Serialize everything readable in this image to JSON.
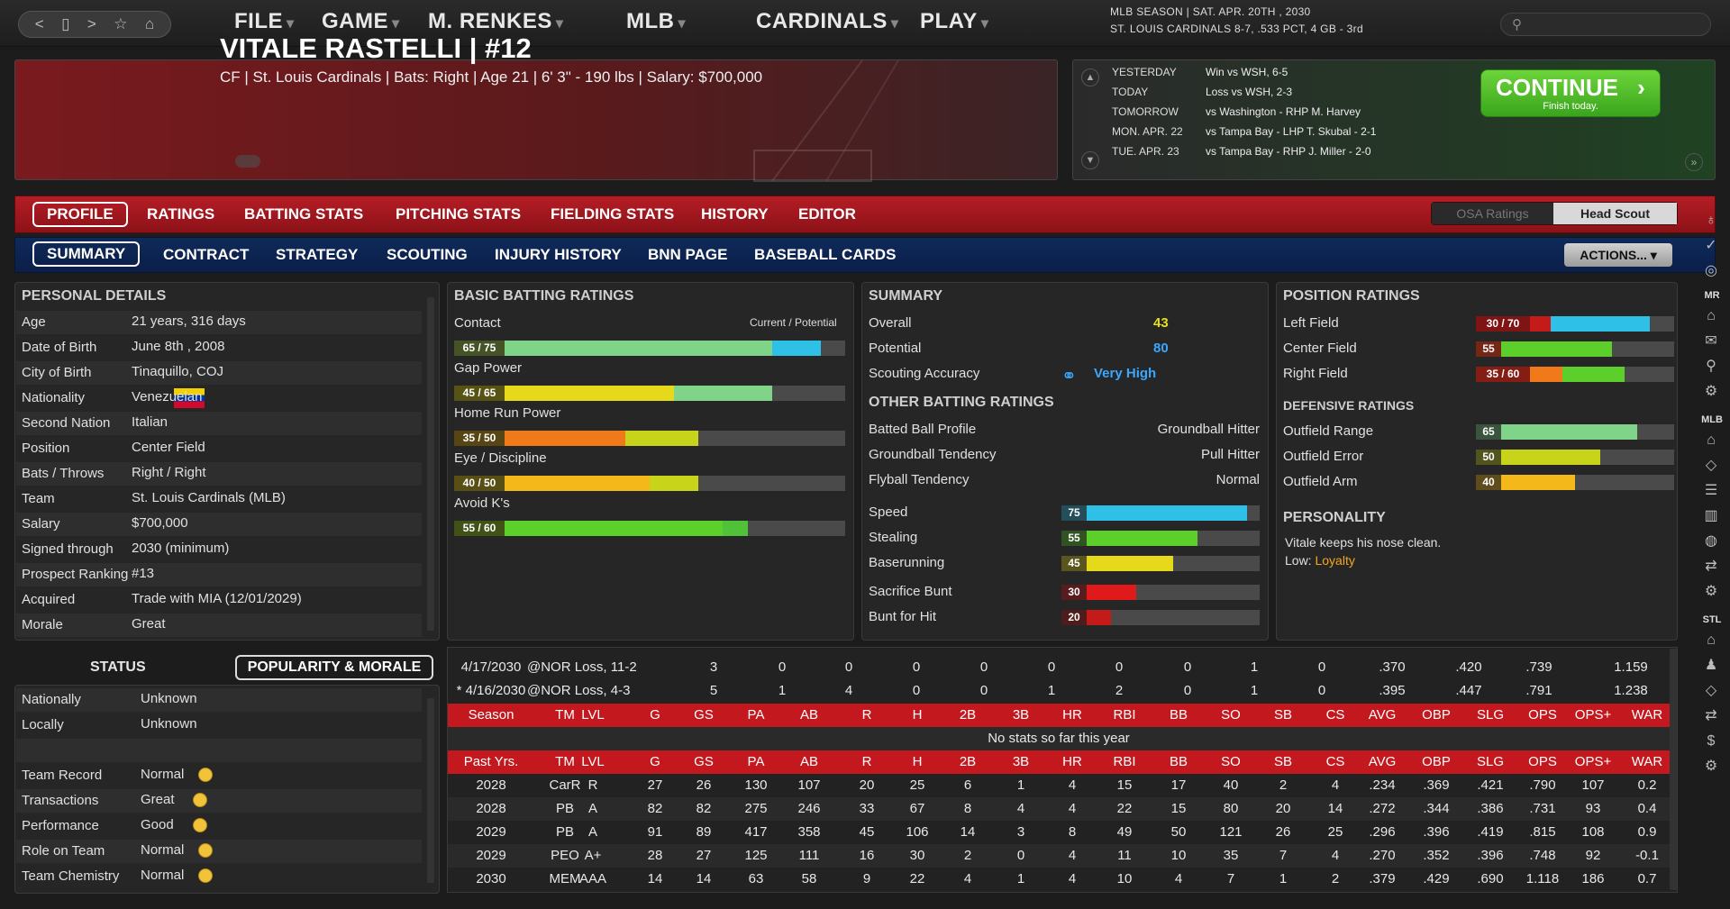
{
  "topbar": {
    "nav_icons": [
      "<",
      "▯",
      ">",
      "☆",
      "⌂"
    ],
    "menus": [
      "FILE",
      "GAME",
      "M. RENKES",
      "MLB",
      "CARDINALS",
      "PLAY"
    ],
    "season_line1": "MLB SEASON  |  SAT. APR. 20TH , 2030",
    "season_line2": "ST. LOUIS CARDINALS  8-7, .533 PCT, 4 GB - 3rd"
  },
  "player": {
    "name": "VITALE RASTELLI  |  #12",
    "info": "CF | St. Louis Cardinals  |  Bats: Right  |  Age 21  |  6' 3\" - 190 lbs  |  Salary: $700,000"
  },
  "schedule": {
    "rows": [
      {
        "day": "YESTERDAY",
        "result": "Win vs WSH, 6-5"
      },
      {
        "day": "TODAY",
        "result": "Loss vs WSH, 2-3"
      },
      {
        "day": "TOMORROW",
        "result": "vs Washington - RHP M. Harvey"
      },
      {
        "day": "MON. APR. 22",
        "result": "vs Tampa Bay - LHP T. Skubal - 2-1"
      },
      {
        "day": "TUE. APR. 23",
        "result": "vs Tampa Bay - RHP J. Miller - 2-0"
      }
    ],
    "continue_label": "CONTINUE",
    "continue_sub": "Finish today."
  },
  "tabs_main": [
    "PROFILE",
    "RATINGS",
    "BATTING STATS",
    "PITCHING STATS",
    "FIELDING STATS",
    "HISTORY",
    "EDITOR"
  ],
  "tabs_sub": [
    "SUMMARY",
    "CONTRACT",
    "STRATEGY",
    "SCOUTING",
    "INJURY HISTORY",
    "BNN PAGE",
    "BASEBALL CARDS"
  ],
  "toggle": {
    "off": "OSA Ratings",
    "on": "Head Scout"
  },
  "actions_label": "ACTIONS...",
  "personal": {
    "title": "PERSONAL DETAILS",
    "rows": [
      {
        "label": "Age",
        "value": "21 years, 316 days"
      },
      {
        "label": "Date of Birth",
        "value": "June 8th , 2008"
      },
      {
        "label": "City of Birth",
        "value": "Tinaquillo, COJ"
      },
      {
        "label": "Nationality",
        "value": "Venezuelan"
      },
      {
        "label": "Second Nation",
        "value": "Italian"
      },
      {
        "label": "Position",
        "value": "Center Field"
      },
      {
        "label": "Bats / Throws",
        "value": "Right / Right"
      },
      {
        "label": "Team",
        "value": "St. Louis Cardinals (MLB)"
      },
      {
        "label": "Salary",
        "value": "$700,000"
      },
      {
        "label": "Signed through",
        "value": "2030 (minimum)"
      },
      {
        "label": "Prospect Ranking",
        "value": "#13"
      },
      {
        "label": "Acquired",
        "value": "Trade with MIA (12/01/2029)"
      },
      {
        "label": "Morale",
        "value": "Great"
      }
    ]
  },
  "batting": {
    "title": "BASIC BATTING RATINGS",
    "header_right": "Current / Potential",
    "ratings": [
      {
        "name": "Contact",
        "badge": "65 / 75",
        "current": 65,
        "potential": 75,
        "color": "#7fd48a",
        "pcolor": "#2fc0e8"
      },
      {
        "name": "Gap Power",
        "badge": "45 / 65",
        "current": 45,
        "potential": 65,
        "color": "#e6d81a",
        "pcolor": "#7fd48a"
      },
      {
        "name": "Home Run Power",
        "badge": "35 / 50",
        "current": 35,
        "potential": 50,
        "color": "#f07a1a",
        "pcolor": "#c8d41a"
      },
      {
        "name": "Eye / Discipline",
        "badge": "40 / 50",
        "current": 40,
        "potential": 50,
        "color": "#f5b81a",
        "pcolor": "#c8d41a"
      },
      {
        "name": "Avoid K's",
        "badge": "55 / 60",
        "current": 55,
        "potential": 60,
        "color": "#5ccf2a",
        "pcolor": "#4fc23a"
      }
    ]
  },
  "summary": {
    "title": "SUMMARY",
    "overall_label": "Overall",
    "overall": "43",
    "potential_label": "Potential",
    "potential": "80",
    "scouting_label": "Scouting Accuracy",
    "scouting": "Very High",
    "other_title": "OTHER BATTING RATINGS",
    "other": [
      {
        "label": "Batted Ball Profile",
        "value": "Groundball Hitter"
      },
      {
        "label": "Groundball Tendency",
        "value": "Pull Hitter"
      },
      {
        "label": "Flyball Tendency",
        "value": "Normal"
      }
    ],
    "speed": [
      {
        "label": "Speed",
        "value": 75,
        "color": "#2fc0e8"
      },
      {
        "label": "Stealing",
        "value": 55,
        "color": "#5ccf2a"
      },
      {
        "label": "Baserunning",
        "value": 45,
        "color": "#e6d81a"
      },
      {
        "label": "Sacrifice Bunt",
        "value": 30,
        "color": "#e01a1a"
      },
      {
        "label": "Bunt for Hit",
        "value": 20,
        "color": "#c41a1a"
      }
    ]
  },
  "position": {
    "title": "POSITION RATINGS",
    "rows": [
      {
        "label": "Left Field",
        "badge": "30 / 70",
        "current": 30,
        "potential": 70,
        "color": "#c41a1a",
        "pcolor": "#2fc0e8"
      },
      {
        "label": "Center Field",
        "badge": "55",
        "current": 55,
        "potential": 55,
        "color": "#5ccf2a",
        "pcolor": "#5ccf2a"
      },
      {
        "label": "Right Field",
        "badge": "35 / 60",
        "current": 35,
        "potential": 60,
        "color": "#f07a1a",
        "pcolor": "#5ccf2a"
      }
    ],
    "def_title": "DEFENSIVE RATINGS",
    "def": [
      {
        "label": "Outfield Range",
        "value": 65,
        "color": "#7fd48a"
      },
      {
        "label": "Outfield Error",
        "value": 50,
        "color": "#c8d41a"
      },
      {
        "label": "Outfield Arm",
        "value": 40,
        "color": "#f5b81a"
      }
    ],
    "personality_title": "PERSONALITY",
    "personality_text": "Vitale keeps his nose clean.",
    "low_label": "Low:",
    "low_value": "Loyalty"
  },
  "status": {
    "title": "STATUS",
    "tab_label": "POPULARITY & MORALE",
    "rows": [
      {
        "label": "Nationally",
        "value": "Unknown"
      },
      {
        "label": "Locally",
        "value": "Unknown"
      },
      {
        "label": "",
        "value": ""
      },
      {
        "label": "Team Record",
        "value": "Normal"
      },
      {
        "label": "Transactions",
        "value": "Great"
      },
      {
        "label": "Performance",
        "value": "Good"
      },
      {
        "label": "Role on Team",
        "value": "Normal"
      },
      {
        "label": "Team Chemistry",
        "value": "Normal"
      }
    ]
  },
  "stats": {
    "game_rows": [
      [
        "4/17/2030",
        "@NOR Loss, 11-2",
        "3",
        "0",
        "0",
        "0",
        "0",
        "0",
        "0",
        "0",
        "1",
        "0",
        ".370",
        ".420",
        ".739",
        "1.159"
      ],
      [
        "* 4/16/2030",
        "@NOR Loss, 4-3",
        "5",
        "1",
        "4",
        "0",
        "0",
        "1",
        "2",
        "0",
        "1",
        "0",
        ".395",
        ".447",
        ".791",
        "1.238"
      ]
    ],
    "season_header": [
      "Season",
      "TM",
      "LVL",
      "G",
      "GS",
      "PA",
      "AB",
      "R",
      "H",
      "2B",
      "3B",
      "HR",
      "RBI",
      "BB",
      "SO",
      "SB",
      "CS",
      "AVG",
      "OBP",
      "SLG",
      "OPS",
      "OPS+",
      "WAR"
    ],
    "no_stats": "No stats so far this year",
    "past_header": [
      "Past Yrs.",
      "TM",
      "LVL",
      "G",
      "GS",
      "PA",
      "AB",
      "R",
      "H",
      "2B",
      "3B",
      "HR",
      "RBI",
      "BB",
      "SO",
      "SB",
      "CS",
      "AVG",
      "OBP",
      "SLG",
      "OPS",
      "OPS+",
      "WAR"
    ],
    "past_rows": [
      [
        "2028",
        "CarR",
        "R",
        "27",
        "26",
        "130",
        "107",
        "20",
        "25",
        "6",
        "1",
        "4",
        "15",
        "17",
        "40",
        "2",
        "4",
        ".234",
        ".369",
        ".421",
        ".790",
        "107",
        "0.2"
      ],
      [
        "2028",
        "PB",
        "A",
        "82",
        "82",
        "275",
        "246",
        "33",
        "67",
        "8",
        "4",
        "4",
        "22",
        "15",
        "80",
        "20",
        "14",
        ".272",
        ".344",
        ".386",
        ".731",
        "93",
        "0.4"
      ],
      [
        "2029",
        "PB",
        "A",
        "91",
        "89",
        "417",
        "358",
        "45",
        "106",
        "14",
        "3",
        "8",
        "49",
        "50",
        "121",
        "26",
        "25",
        ".296",
        ".396",
        ".419",
        ".815",
        "108",
        "0.9"
      ],
      [
        "2029",
        "PEO",
        "A+",
        "28",
        "27",
        "125",
        "111",
        "16",
        "30",
        "2",
        "0",
        "4",
        "11",
        "10",
        "35",
        "7",
        "4",
        ".270",
        ".352",
        ".396",
        ".748",
        "92",
        "-0.1"
      ],
      [
        "2030",
        "MEM",
        "AAA",
        "14",
        "14",
        "63",
        "58",
        "9",
        "22",
        "4",
        "1",
        "4",
        "10",
        "4",
        "7",
        "1",
        "2",
        ".379",
        ".429",
        ".690",
        "1.118",
        "186",
        "0.7"
      ]
    ]
  },
  "rail": {
    "labels": [
      "MR",
      "MLB",
      "STL"
    ]
  }
}
